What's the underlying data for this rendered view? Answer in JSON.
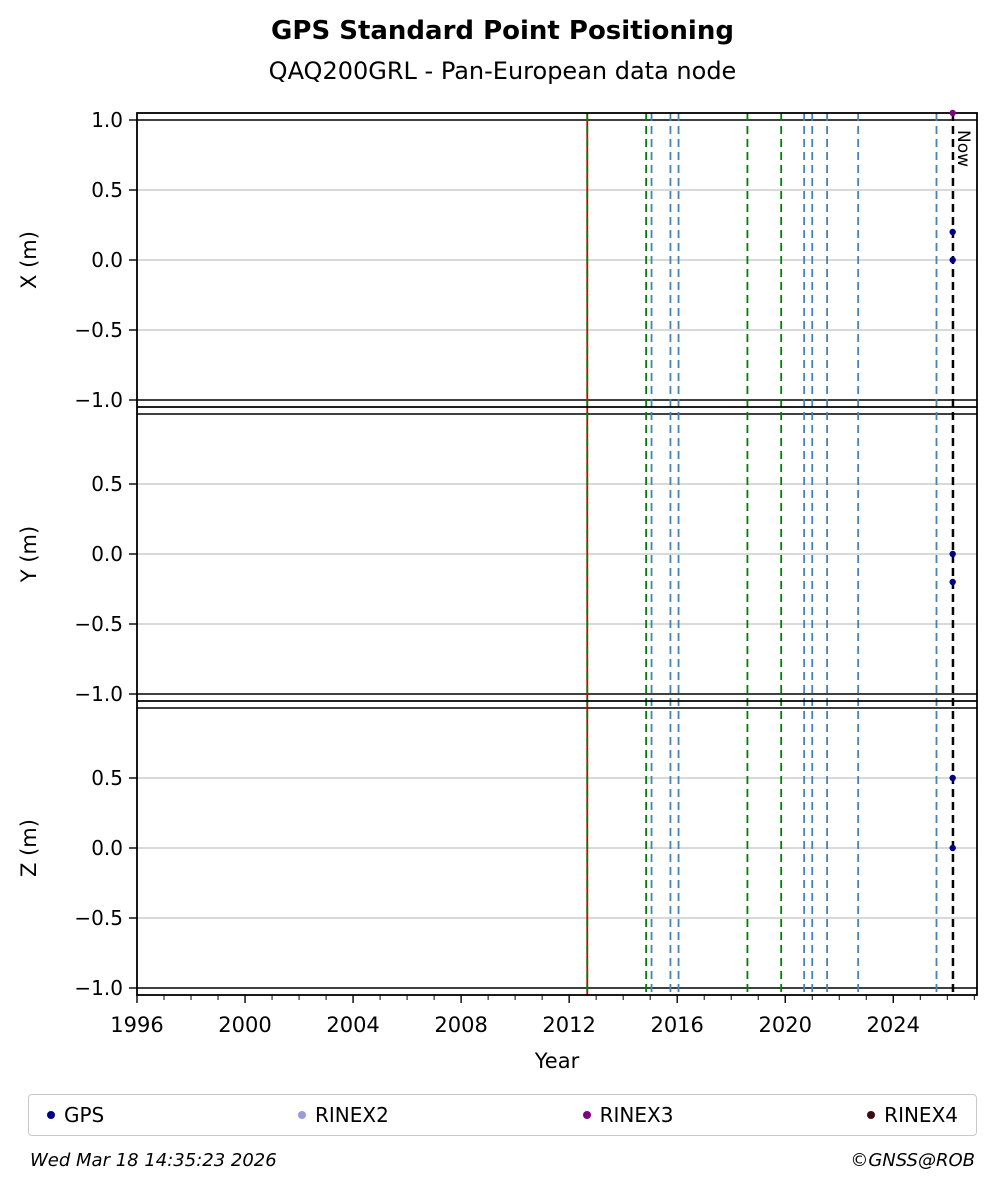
{
  "header": {
    "title": "GPS Standard Point Positioning",
    "subtitle": "QAQ200GRL - Pan-European data node"
  },
  "chart_data": {
    "type": "scatter",
    "title": "GPS Standard Point Positioning",
    "subtitle": "QAQ200GRL - Pan-European data node",
    "xlabel": "Year",
    "xlim": [
      1996,
      2027.1
    ],
    "xticks": [
      1996,
      2000,
      2004,
      2008,
      2012,
      2016,
      2020,
      2024
    ],
    "grid": true,
    "legend_position": "bottom",
    "subplots": [
      {
        "ylabel": "X (m)",
        "ylim": [
          -1.05,
          1.05
        ],
        "yticks": [
          1.0,
          0.5,
          0.0,
          -0.5,
          -1.0
        ],
        "points": [
          {
            "x": 2026.2,
            "y": 1.05,
            "series": "RINEX3"
          },
          {
            "x": 2026.2,
            "y": 0.2,
            "series": "GPS"
          },
          {
            "x": 2026.2,
            "y": 0.0,
            "series": "GPS"
          }
        ]
      },
      {
        "ylabel": "Y (m)",
        "ylim": [
          -1.05,
          1.05
        ],
        "yticks": [
          0.5,
          0.0,
          -0.5,
          -1.0
        ],
        "points": [
          {
            "x": 2026.2,
            "y": 0.0,
            "series": "GPS"
          },
          {
            "x": 2026.2,
            "y": -0.2,
            "series": "GPS"
          }
        ]
      },
      {
        "ylabel": "Z (m)",
        "ylim": [
          -1.05,
          1.05
        ],
        "yticks": [
          0.5,
          0.0,
          -0.5,
          -1.0
        ],
        "points": [
          {
            "x": 2026.2,
            "y": 0.5,
            "series": "GPS"
          },
          {
            "x": 2026.2,
            "y": 0.0,
            "series": "GPS"
          }
        ]
      }
    ],
    "event_lines": [
      {
        "year": 2012.67,
        "color": "#d40000",
        "style": "solid"
      },
      {
        "year": 2012.67,
        "color": "#008000",
        "style": "dashed"
      },
      {
        "year": 2014.85,
        "color": "#008000",
        "style": "dashed"
      },
      {
        "year": 2015.05,
        "color": "#4682b4",
        "style": "dashed"
      },
      {
        "year": 2015.75,
        "color": "#4682b4",
        "style": "dashed"
      },
      {
        "year": 2016.05,
        "color": "#4682b4",
        "style": "dashed"
      },
      {
        "year": 2018.6,
        "color": "#008000",
        "style": "dashed"
      },
      {
        "year": 2019.85,
        "color": "#008000",
        "style": "dashed"
      },
      {
        "year": 2020.7,
        "color": "#4682b4",
        "style": "dashed"
      },
      {
        "year": 2021.0,
        "color": "#4682b4",
        "style": "dashed"
      },
      {
        "year": 2021.55,
        "color": "#4682b4",
        "style": "dashed"
      },
      {
        "year": 2022.7,
        "color": "#4682b4",
        "style": "dashed"
      },
      {
        "year": 2025.6,
        "color": "#4682b4",
        "style": "dashed"
      }
    ],
    "now_line": {
      "year": 2026.21,
      "label": "Now",
      "color": "#000000",
      "style": "dashed"
    },
    "series_colors": {
      "GPS": "#00008b",
      "RINEX2": "#959bdb",
      "RINEX3": "#800080",
      "RINEX4": "#3a0b12"
    }
  },
  "legend": {
    "items": [
      {
        "label": "GPS",
        "color": "#00008b"
      },
      {
        "label": "RINEX2",
        "color": "#959bdb"
      },
      {
        "label": "RINEX3",
        "color": "#800080"
      },
      {
        "label": "RINEX4",
        "color": "#3a0b12"
      }
    ]
  },
  "footer": {
    "timestamp": "Wed Mar 18 14:35:23 2026",
    "copyright": "©GNSS@ROB"
  }
}
